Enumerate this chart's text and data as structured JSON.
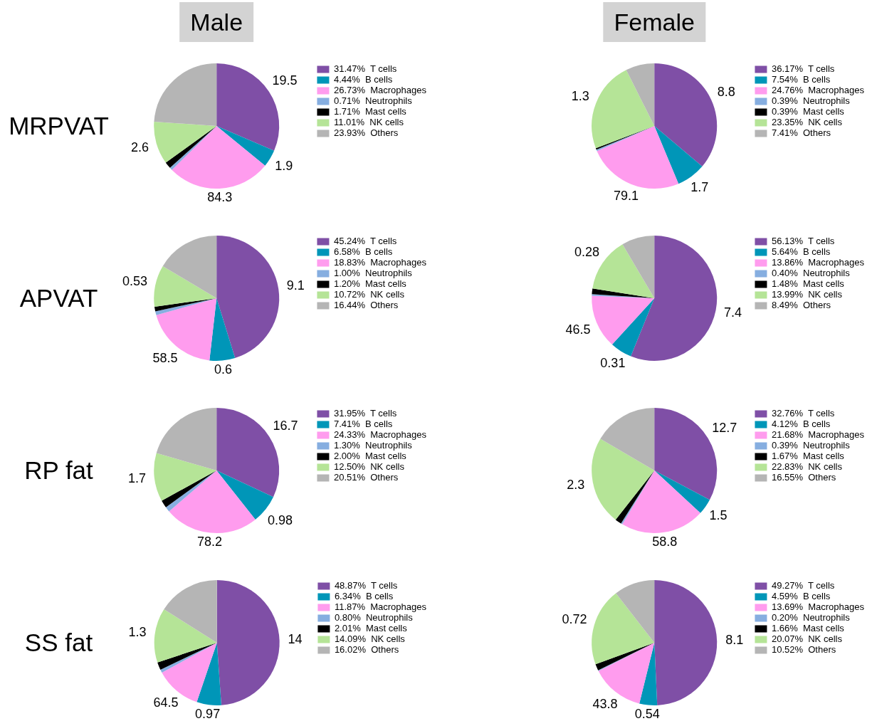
{
  "chart_data": [
    {
      "type": "pie",
      "title": "Male",
      "ylabel": "MRPVAT",
      "legend": "right",
      "categories": [
        "T cells",
        "B cells",
        "Macrophages",
        "Neutrophils",
        "Mast cells",
        "NK cells",
        "Others"
      ],
      "values": [
        31.47,
        4.44,
        26.73,
        0.71,
        1.71,
        11.01,
        23.93
      ],
      "value_labels": [
        "31.47%",
        "4.44%",
        "26.73%",
        "0.71%",
        "1.71%",
        "11.01%",
        "23.93%"
      ],
      "colors": [
        "#7f4fa6",
        "#0096b8",
        "#ff9cee",
        "#86aee0",
        "#000000",
        "#b5e497",
        "#b5b5b5"
      ],
      "annotations": [
        {
          "text": "19.5",
          "x": "T cells"
        },
        {
          "text": "1.9",
          "x": "B cells"
        },
        {
          "text": "84.3",
          "x": "Macrophages"
        },
        {
          "text": "2.6",
          "x": "NK cells"
        }
      ]
    },
    {
      "type": "pie",
      "title": "Female",
      "legend": "right",
      "categories": [
        "T cells",
        "B cells",
        "Macrophages",
        "Neutrophils",
        "Mast cells",
        "NK cells",
        "Others"
      ],
      "values": [
        36.17,
        7.54,
        24.76,
        0.39,
        0.39,
        23.35,
        7.41
      ],
      "value_labels": [
        "36.17%",
        "7.54%",
        "24.76%",
        "0.39%",
        "0.39%",
        "23.35%",
        "7.41%"
      ],
      "colors": [
        "#7f4fa6",
        "#0096b8",
        "#ff9cee",
        "#86aee0",
        "#000000",
        "#b5e497",
        "#b5b5b5"
      ],
      "annotations": [
        {
          "text": "8.8",
          "x": "T cells"
        },
        {
          "text": "1.7",
          "x": "B cells"
        },
        {
          "text": "79.1",
          "x": "Macrophages"
        },
        {
          "text": "1.3",
          "x": "NK cells"
        }
      ]
    },
    {
      "type": "pie",
      "ylabel": "APVAT",
      "legend": "right",
      "categories": [
        "T cells",
        "B cells",
        "Macrophages",
        "Neutrophils",
        "Mast cells",
        "NK cells",
        "Others"
      ],
      "values": [
        45.24,
        6.58,
        18.83,
        1.0,
        1.2,
        10.72,
        16.44
      ],
      "value_labels": [
        "45.24%",
        "6.58%",
        "18.83%",
        "1.00%",
        "1.20%",
        "10.72%",
        "16.44%"
      ],
      "colors": [
        "#7f4fa6",
        "#0096b8",
        "#ff9cee",
        "#86aee0",
        "#000000",
        "#b5e497",
        "#b5b5b5"
      ],
      "annotations": [
        {
          "text": "9.1",
          "x": "T cells"
        },
        {
          "text": "0.6",
          "x": "B cells"
        },
        {
          "text": "58.5",
          "x": "Macrophages"
        },
        {
          "text": "0.53",
          "x": "NK cells"
        }
      ]
    },
    {
      "type": "pie",
      "legend": "right",
      "categories": [
        "T cells",
        "B cells",
        "Macrophages",
        "Neutrophils",
        "Mast cells",
        "NK cells",
        "Others"
      ],
      "values": [
        56.13,
        5.64,
        13.86,
        0.4,
        1.48,
        13.99,
        8.49
      ],
      "value_labels": [
        "56.13%",
        "5.64%",
        "13.86%",
        "0.40%",
        "1.48%",
        "13.99%",
        "8.49%"
      ],
      "colors": [
        "#7f4fa6",
        "#0096b8",
        "#ff9cee",
        "#86aee0",
        "#000000",
        "#b5e497",
        "#b5b5b5"
      ],
      "annotations": [
        {
          "text": "7.4",
          "x": "T cells"
        },
        {
          "text": "0.31",
          "x": "B cells"
        },
        {
          "text": "46.5",
          "x": "Macrophages"
        },
        {
          "text": "0.28",
          "x": "NK cells"
        }
      ]
    },
    {
      "type": "pie",
      "ylabel": "RP fat",
      "legend": "right",
      "categories": [
        "T cells",
        "B cells",
        "Macrophages",
        "Neutrophils",
        "Mast cells",
        "NK cells",
        "Others"
      ],
      "values": [
        31.95,
        7.41,
        24.33,
        1.3,
        2.0,
        12.5,
        20.51
      ],
      "value_labels": [
        "31.95%",
        "7.41%",
        "24.33%",
        "1.30%",
        "2.00%",
        "12.50%",
        "20.51%"
      ],
      "colors": [
        "#7f4fa6",
        "#0096b8",
        "#ff9cee",
        "#86aee0",
        "#000000",
        "#b5e497",
        "#b5b5b5"
      ],
      "annotations": [
        {
          "text": "16.7",
          "x": "T cells"
        },
        {
          "text": "0.98",
          "x": "B cells"
        },
        {
          "text": "78.2",
          "x": "Macrophages"
        },
        {
          "text": "1.7",
          "x": "NK cells"
        }
      ]
    },
    {
      "type": "pie",
      "legend": "right",
      "categories": [
        "T cells",
        "B cells",
        "Macrophages",
        "Neutrophils",
        "Mast cells",
        "NK cells",
        "Others"
      ],
      "values": [
        32.76,
        4.12,
        21.68,
        0.39,
        1.67,
        22.83,
        16.55
      ],
      "value_labels": [
        "32.76%",
        "4.12%",
        "21.68%",
        "0.39%",
        "1.67%",
        "22.83%",
        "16.55%"
      ],
      "colors": [
        "#7f4fa6",
        "#0096b8",
        "#ff9cee",
        "#86aee0",
        "#000000",
        "#b5e497",
        "#b5b5b5"
      ],
      "annotations": [
        {
          "text": "12.7",
          "x": "T cells"
        },
        {
          "text": "1.5",
          "x": "B cells"
        },
        {
          "text": "58.8",
          "x": "Macrophages"
        },
        {
          "text": "2.3",
          "x": "NK cells"
        }
      ]
    },
    {
      "type": "pie",
      "ylabel": "SS fat",
      "legend": "right",
      "categories": [
        "T cells",
        "B cells",
        "Macrophages",
        "Neutrophils",
        "Mast cells",
        "NK cells",
        "Others"
      ],
      "values": [
        48.87,
        6.34,
        11.87,
        0.8,
        2.01,
        14.09,
        16.02
      ],
      "value_labels": [
        "48.87%",
        "6.34%",
        "11.87%",
        "0.80%",
        "2.01%",
        "14.09%",
        "16.02%"
      ],
      "colors": [
        "#7f4fa6",
        "#0096b8",
        "#ff9cee",
        "#86aee0",
        "#000000",
        "#b5e497",
        "#b5b5b5"
      ],
      "annotations": [
        {
          "text": "14",
          "x": "T cells"
        },
        {
          "text": "0.97",
          "x": "B cells"
        },
        {
          "text": "64.5",
          "x": "Macrophages"
        },
        {
          "text": "1.3",
          "x": "NK cells"
        }
      ]
    },
    {
      "type": "pie",
      "legend": "right",
      "categories": [
        "T cells",
        "B cells",
        "Macrophages",
        "Neutrophils",
        "Mast cells",
        "NK cells",
        "Others"
      ],
      "values": [
        49.27,
        4.59,
        13.69,
        0.2,
        1.66,
        20.07,
        10.52
      ],
      "value_labels": [
        "49.27%",
        "4.59%",
        "13.69%",
        "0.20%",
        "1.66%",
        "20.07%",
        "10.52%"
      ],
      "colors": [
        "#7f4fa6",
        "#0096b8",
        "#ff9cee",
        "#86aee0",
        "#000000",
        "#b5e497",
        "#b5b5b5"
      ],
      "annotations": [
        {
          "text": "8.1",
          "x": "T cells"
        },
        {
          "text": "0.54",
          "x": "B cells"
        },
        {
          "text": "43.8",
          "x": "Macrophages"
        },
        {
          "text": "0.72",
          "x": "NK cells"
        }
      ]
    }
  ]
}
